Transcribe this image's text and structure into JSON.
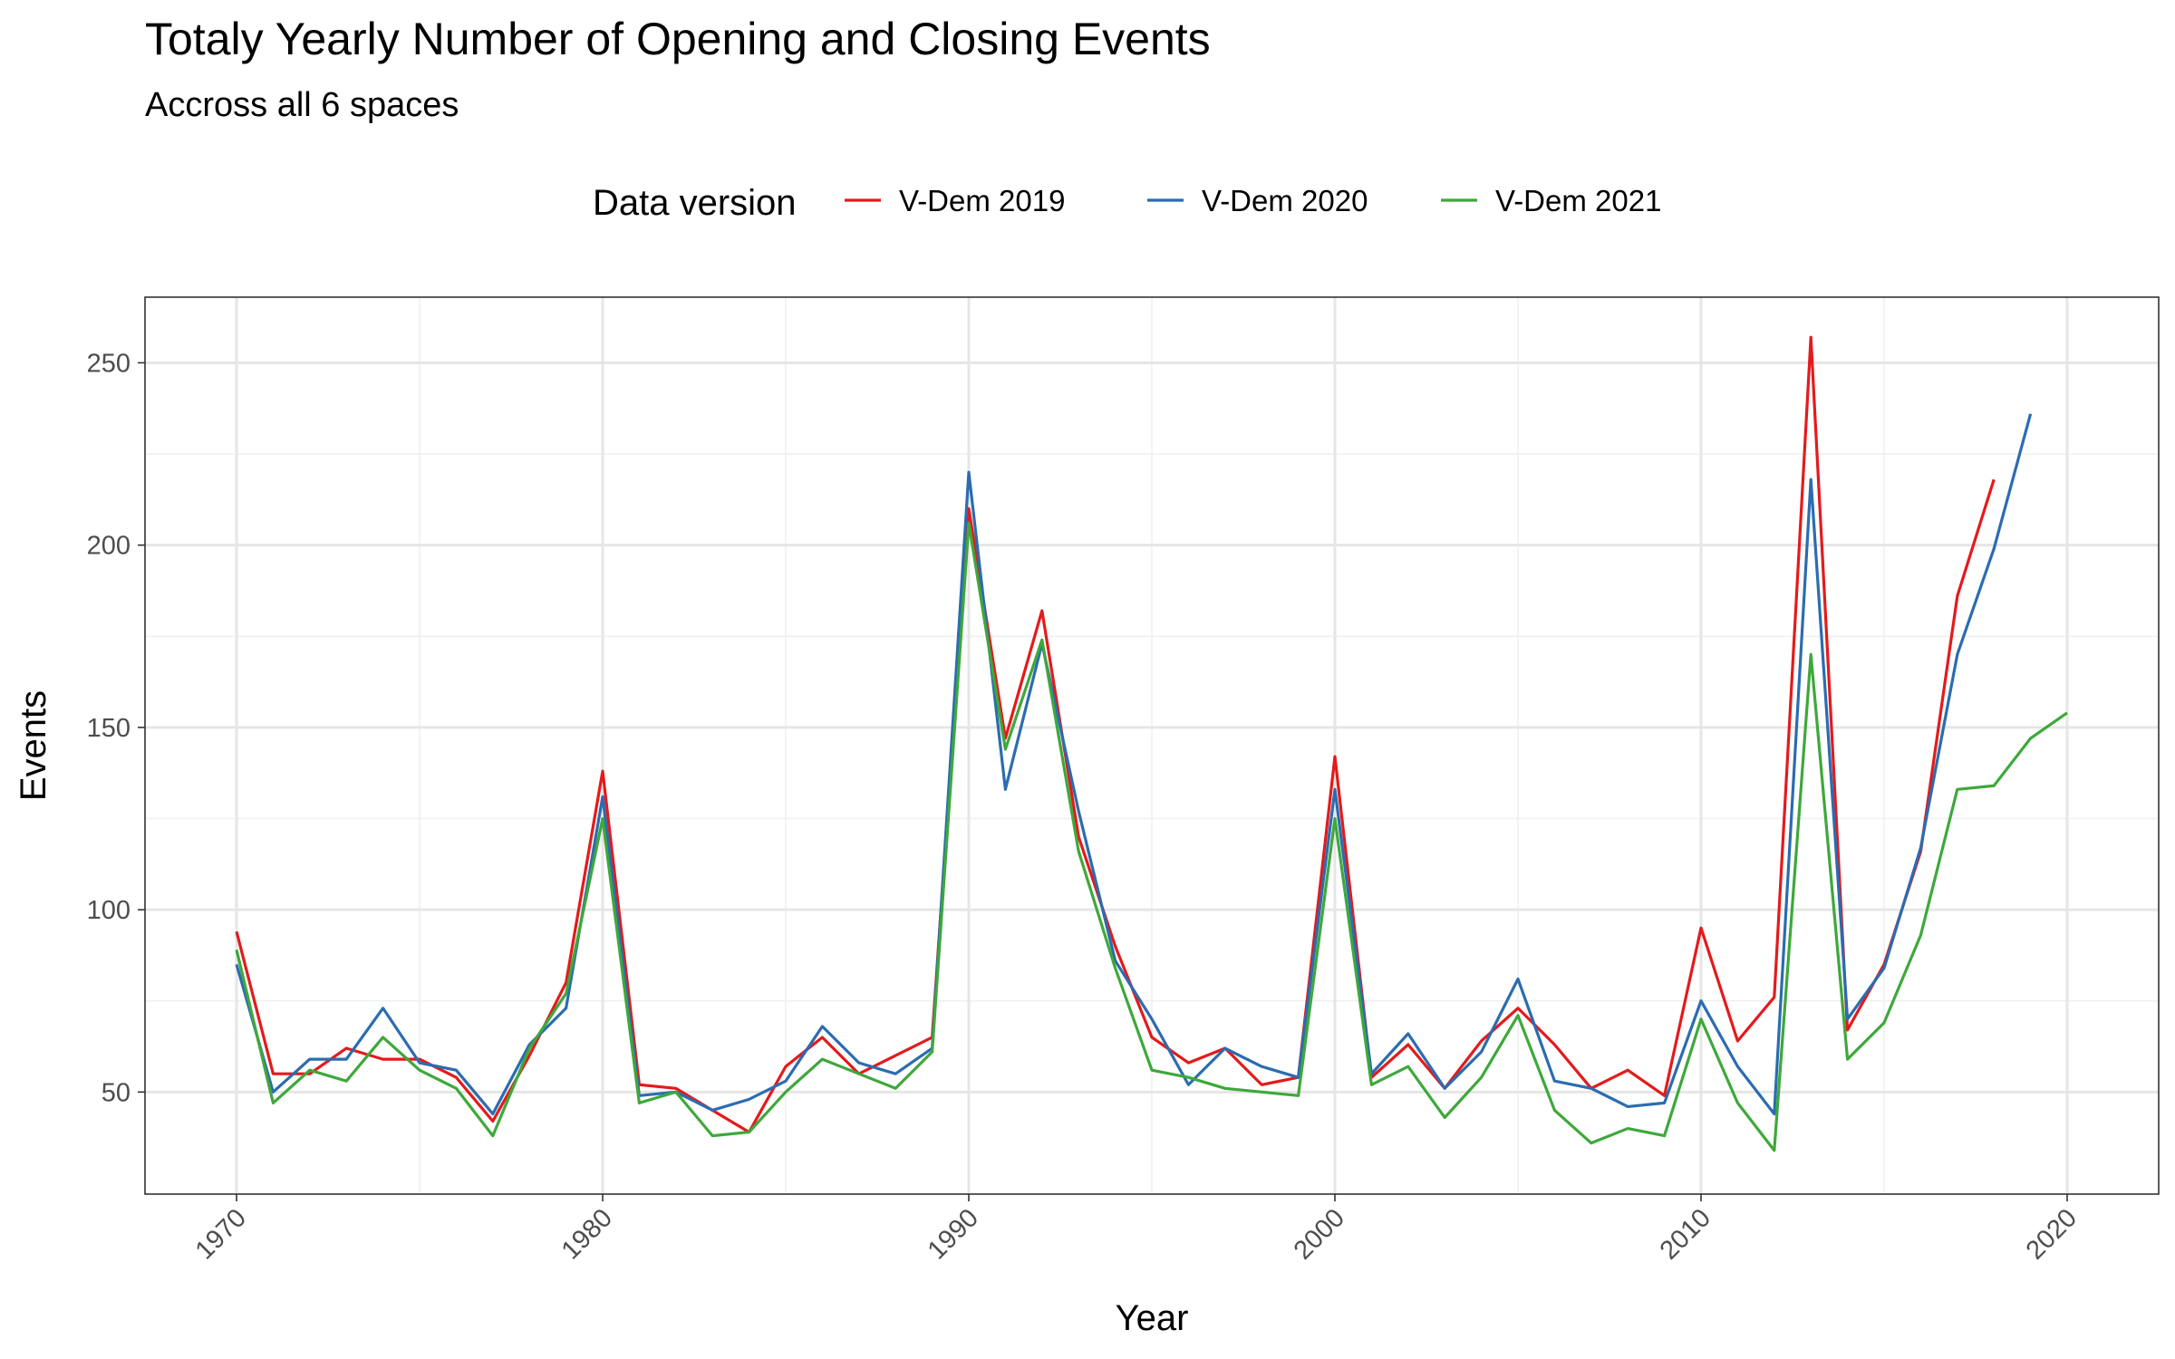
{
  "chart_data": {
    "type": "line",
    "title": "Totaly Yearly Number of Opening and Closing Events",
    "subtitle": "Accross all 6 spaces",
    "xlabel": "Year",
    "ylabel": "Events",
    "xlim": [
      1967.5,
      2022.5
    ],
    "ylim": [
      22,
      268
    ],
    "x_ticks": [
      1970,
      1980,
      1990,
      2000,
      2010,
      2020
    ],
    "x_minor_ticks": [
      1975,
      1985,
      1995,
      2005,
      2015
    ],
    "y_ticks": [
      50,
      100,
      150,
      200,
      250
    ],
    "y_minor_ticks": [
      75,
      125,
      175,
      225
    ],
    "grid": true,
    "legend": {
      "title": "Data version",
      "position": "top"
    },
    "series": [
      {
        "name": "V-Dem 2019",
        "color": "#e41a1c",
        "x": [
          1970,
          1971,
          1972,
          1973,
          1974,
          1975,
          1976,
          1977,
          1978,
          1979,
          1980,
          1981,
          1982,
          1983,
          1984,
          1985,
          1986,
          1987,
          1988,
          1989,
          1990,
          1991,
          1992,
          1993,
          1994,
          1995,
          1996,
          1997,
          1998,
          1999,
          2000,
          2001,
          2002,
          2003,
          2004,
          2005,
          2006,
          2007,
          2008,
          2009,
          2010,
          2011,
          2012,
          2013,
          2014,
          2015,
          2016,
          2017,
          2018
        ],
        "values": [
          94,
          55,
          55,
          62,
          59,
          59,
          54,
          42,
          60,
          80,
          138,
          52,
          51,
          45,
          39,
          57,
          65,
          55,
          60,
          65,
          210,
          147,
          182,
          120,
          90,
          65,
          58,
          62,
          52,
          54,
          142,
          54,
          63,
          51,
          64,
          73,
          63,
          51,
          56,
          49,
          95,
          64,
          76,
          257,
          67,
          85,
          116,
          186,
          218
        ]
      },
      {
        "name": "V-Dem 2020",
        "color": "#2b6cb0",
        "x": [
          1970,
          1971,
          1972,
          1973,
          1974,
          1975,
          1976,
          1977,
          1978,
          1979,
          1980,
          1981,
          1982,
          1983,
          1984,
          1985,
          1986,
          1987,
          1988,
          1989,
          1990,
          1991,
          1992,
          1993,
          1994,
          1995,
          1996,
          1997,
          1998,
          1999,
          2000,
          2001,
          2002,
          2003,
          2004,
          2005,
          2006,
          2007,
          2008,
          2009,
          2010,
          2011,
          2012,
          2013,
          2014,
          2015,
          2016,
          2017,
          2018,
          2019
        ],
        "values": [
          85,
          50,
          59,
          59,
          73,
          58,
          56,
          44,
          63,
          73,
          131,
          49,
          50,
          45,
          48,
          53,
          68,
          58,
          55,
          62,
          220,
          133,
          173,
          127,
          86,
          70,
          52,
          62,
          57,
          54,
          133,
          55,
          66,
          51,
          61,
          81,
          53,
          51,
          46,
          47,
          75,
          57,
          44,
          218,
          70,
          84,
          117,
          170,
          199,
          236
        ]
      },
      {
        "name": "V-Dem 2021",
        "color": "#3ea83b",
        "x": [
          1970,
          1971,
          1972,
          1973,
          1974,
          1975,
          1976,
          1977,
          1978,
          1979,
          1980,
          1981,
          1982,
          1983,
          1984,
          1985,
          1986,
          1987,
          1988,
          1989,
          1990,
          1991,
          1992,
          1993,
          1994,
          1995,
          1996,
          1997,
          1998,
          1999,
          2000,
          2001,
          2002,
          2003,
          2004,
          2005,
          2006,
          2007,
          2008,
          2009,
          2010,
          2011,
          2012,
          2013,
          2014,
          2015,
          2016,
          2017,
          2018,
          2019,
          2020
        ],
        "values": [
          89,
          47,
          56,
          53,
          65,
          56,
          51,
          38,
          62,
          77,
          125,
          47,
          50,
          38,
          39,
          50,
          59,
          55,
          51,
          61,
          206,
          144,
          174,
          116,
          84,
          56,
          54,
          51,
          50,
          49,
          125,
          52,
          57,
          43,
          54,
          71,
          45,
          36,
          40,
          38,
          70,
          47,
          34,
          170,
          59,
          69,
          93,
          133,
          134,
          147,
          154
        ]
      }
    ]
  }
}
